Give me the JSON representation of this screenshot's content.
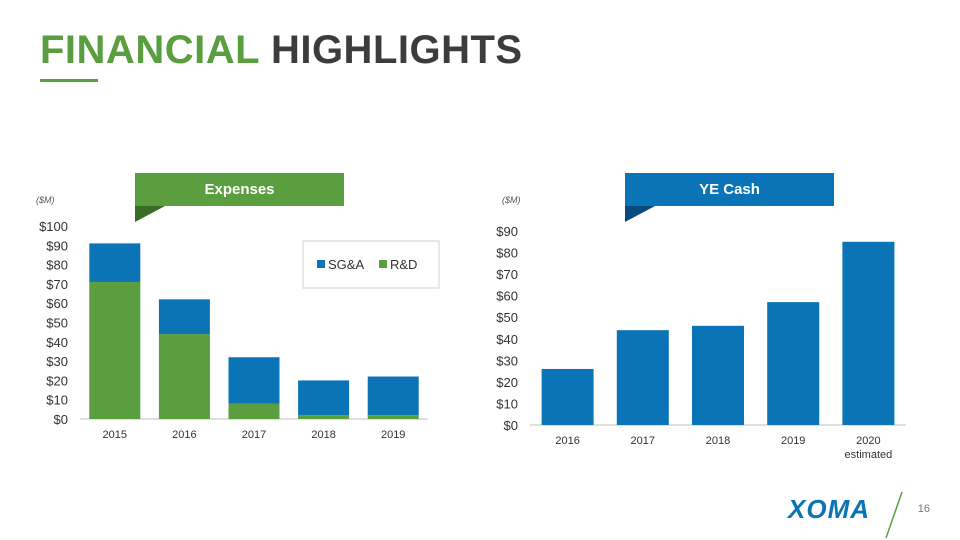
{
  "header": {
    "title_word1": "FINANCIAL",
    "title_word2": "HIGHLIGHTS"
  },
  "footer": {
    "page_number": "16",
    "logo_text": "XOMA"
  },
  "colors": {
    "green": "#5a9e3f",
    "blue": "#0b74b7",
    "dark_green": "#3a6b27",
    "dark_blue": "#074a7c"
  },
  "chart_data": [
    {
      "type": "bar",
      "stacked": true,
      "title": "Expenses",
      "unit_label": "($M)",
      "categories": [
        "2015",
        "2016",
        "2017",
        "2018",
        "2019"
      ],
      "series": [
        {
          "name": "R&D",
          "color": "#5a9e3f",
          "values": [
            71,
            44,
            8,
            2,
            2
          ]
        },
        {
          "name": "SG&A",
          "color": "#0b74b7",
          "values": [
            20,
            18,
            24,
            18,
            20
          ]
        }
      ],
      "legend": [
        "SG&A",
        "R&D"
      ],
      "legend_position": "top-right",
      "ylim": [
        0,
        100
      ],
      "yticks": [
        0,
        10,
        20,
        30,
        40,
        50,
        60,
        70,
        80,
        90,
        100
      ],
      "ytick_labels": [
        "$0",
        "$10",
        "$20",
        "$30",
        "$40",
        "$50",
        "$60",
        "$70",
        "$80",
        "$90",
        "$100"
      ]
    },
    {
      "type": "bar",
      "title": "YE Cash",
      "unit_label": "($M)",
      "categories": [
        "2016",
        "2017",
        "2018",
        "2019",
        "2020"
      ],
      "category_sublabels": [
        "",
        "",
        "",
        "",
        "estimated"
      ],
      "series": [
        {
          "name": "YE Cash",
          "color": "#0b74b7",
          "values": [
            26,
            44,
            46,
            57,
            85
          ]
        }
      ],
      "ylim": [
        0,
        90
      ],
      "yticks": [
        0,
        10,
        20,
        30,
        40,
        50,
        60,
        70,
        80,
        90
      ],
      "ytick_labels": [
        "$0",
        "$10",
        "$20",
        "$30",
        "$40",
        "$50",
        "$60",
        "$70",
        "$80",
        "$90"
      ]
    }
  ]
}
